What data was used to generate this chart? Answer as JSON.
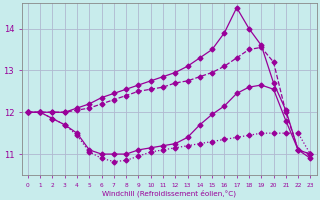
{
  "xlabel": "Windchill (Refroidissement éolien,°C)",
  "bg_color": "#c8ecec",
  "line_color": "#990099",
  "grid_color": "#aaaacc",
  "xlim": [
    -0.5,
    23.5
  ],
  "ylim": [
    10.5,
    14.6
  ],
  "yticks": [
    11,
    12,
    13,
    14
  ],
  "xticks": [
    0,
    1,
    2,
    3,
    4,
    5,
    6,
    7,
    8,
    9,
    10,
    11,
    12,
    13,
    14,
    15,
    16,
    17,
    18,
    19,
    20,
    21,
    22,
    23
  ],
  "series": [
    {
      "x": [
        0,
        1,
        2,
        3,
        4,
        5,
        6,
        7,
        8,
        9,
        10,
        11,
        12,
        13,
        14,
        15,
        16,
        17,
        18,
        19,
        20,
        21,
        22,
        23
      ],
      "y": [
        12.0,
        12.0,
        11.85,
        11.7,
        11.45,
        11.05,
        10.9,
        10.82,
        10.85,
        10.95,
        11.05,
        11.1,
        11.15,
        11.2,
        11.25,
        11.3,
        11.35,
        11.4,
        11.45,
        11.5,
        11.5,
        11.5,
        11.5,
        11.0
      ],
      "style": ":",
      "marker": "D",
      "ms": 2.5,
      "lw": 0.9
    },
    {
      "x": [
        0,
        1,
        2,
        3,
        4,
        5,
        6,
        7,
        8,
        9,
        10,
        11,
        12,
        13,
        14,
        15,
        16,
        17,
        18,
        19,
        20,
        21,
        22,
        23
      ],
      "y": [
        12.0,
        12.0,
        11.85,
        11.7,
        11.5,
        11.1,
        11.0,
        11.0,
        11.0,
        11.1,
        11.15,
        11.2,
        11.25,
        11.4,
        11.7,
        11.95,
        12.15,
        12.45,
        12.6,
        12.65,
        12.55,
        11.8,
        11.1,
        11.0
      ],
      "style": "-",
      "marker": "D",
      "ms": 2.5,
      "lw": 0.9
    },
    {
      "x": [
        0,
        1,
        2,
        3,
        4,
        5,
        6,
        7,
        8,
        9,
        10,
        11,
        12,
        13,
        14,
        15,
        16,
        17,
        18,
        19,
        20,
        21,
        22,
        23
      ],
      "y": [
        12.0,
        12.0,
        12.0,
        12.0,
        12.05,
        12.1,
        12.2,
        12.3,
        12.4,
        12.5,
        12.55,
        12.6,
        12.7,
        12.75,
        12.85,
        12.95,
        13.1,
        13.3,
        13.5,
        13.55,
        13.2,
        12.0,
        11.1,
        11.0
      ],
      "style": "--",
      "marker": "D",
      "ms": 2.5,
      "lw": 0.9
    },
    {
      "x": [
        0,
        1,
        2,
        3,
        4,
        5,
        6,
        7,
        8,
        9,
        10,
        11,
        12,
        13,
        14,
        15,
        16,
        17,
        18,
        19,
        20,
        21,
        22,
        23
      ],
      "y": [
        12.0,
        12.0,
        12.0,
        12.0,
        12.1,
        12.2,
        12.35,
        12.45,
        12.55,
        12.65,
        12.75,
        12.85,
        12.95,
        13.1,
        13.3,
        13.5,
        13.9,
        14.5,
        14.0,
        13.6,
        12.7,
        12.05,
        11.1,
        10.9
      ],
      "style": "-",
      "marker": "D",
      "ms": 2.5,
      "lw": 0.9
    }
  ]
}
